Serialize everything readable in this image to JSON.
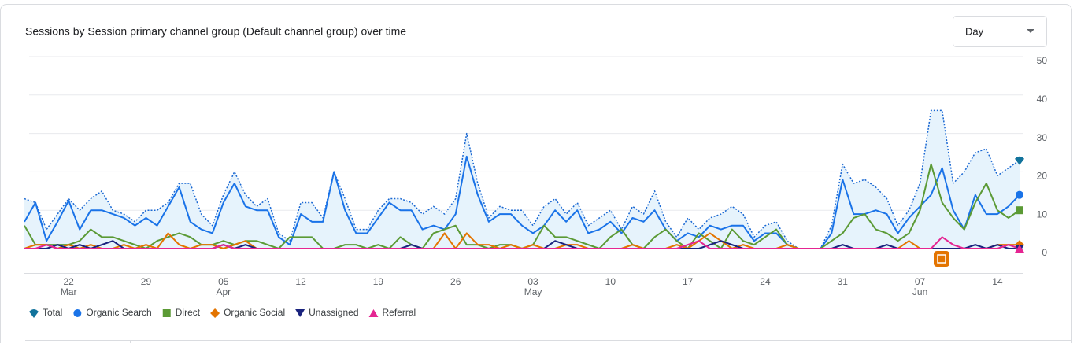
{
  "chart_data": {
    "type": "line",
    "title": "Sessions by Session primary channel group (Default channel group) over time",
    "period": "Day",
    "categories": [
      null,
      null,
      null,
      null,
      "22",
      null,
      null,
      null,
      null,
      null,
      null,
      "29",
      null,
      null,
      null,
      null,
      null,
      null,
      "05",
      null,
      null,
      null,
      null,
      null,
      null,
      "12",
      null,
      null,
      null,
      null,
      null,
      null,
      "19",
      null,
      null,
      null,
      null,
      null,
      null,
      "26",
      null,
      null,
      null,
      null,
      null,
      null,
      "03",
      null,
      null,
      null,
      null,
      null,
      null,
      "10",
      null,
      null,
      null,
      null,
      null,
      null,
      "17",
      null,
      null,
      null,
      null,
      null,
      null,
      "24",
      null,
      null,
      null,
      null,
      null,
      null,
      "31",
      null,
      null,
      null,
      null,
      null,
      null,
      "07",
      null,
      null,
      null,
      null,
      null,
      null,
      "14",
      null,
      null
    ],
    "months": [
      null,
      null,
      null,
      null,
      "Mar",
      null,
      null,
      null,
      null,
      null,
      null,
      null,
      null,
      null,
      null,
      null,
      null,
      null,
      "Apr",
      null,
      null,
      null,
      null,
      null,
      null,
      null,
      null,
      null,
      null,
      null,
      null,
      null,
      null,
      null,
      null,
      null,
      null,
      null,
      null,
      null,
      null,
      null,
      null,
      null,
      null,
      null,
      "May",
      null,
      null,
      null,
      null,
      null,
      null,
      null,
      null,
      null,
      null,
      null,
      null,
      null,
      null,
      null,
      null,
      null,
      null,
      null,
      null,
      null,
      null,
      null,
      null,
      null,
      null,
      null,
      null,
      null,
      null,
      null,
      null,
      null,
      null,
      "Jun",
      null,
      null,
      null,
      null,
      null,
      null,
      null,
      null,
      null
    ],
    "ylim": [
      0,
      50
    ],
    "yticks": [
      0,
      10,
      20,
      30,
      40,
      50
    ],
    "grid": true,
    "legend": "bottom",
    "series": [
      {
        "name": "Total",
        "color": "#1967d2",
        "marker_color": "#12739c",
        "style": "dotted",
        "area": "#e6f3fc",
        "marker": "teardrop",
        "values": [
          13,
          12,
          5,
          9,
          13,
          10,
          13,
          15,
          10,
          9,
          7,
          10,
          10,
          12,
          17,
          17,
          9,
          6,
          14,
          20,
          14,
          11,
          13,
          4,
          2,
          12,
          12,
          8,
          20,
          13,
          5,
          5,
          10,
          13,
          13,
          12,
          9,
          11,
          9,
          13,
          30,
          17,
          8,
          11,
          10,
          10,
          6,
          11,
          13,
          9,
          12,
          6,
          8,
          10,
          5,
          11,
          9,
          15,
          7,
          3,
          8,
          5,
          8,
          9,
          11,
          9,
          3,
          6,
          7,
          2,
          0,
          0,
          0,
          6,
          22,
          17,
          18,
          16,
          13,
          6,
          10,
          17,
          36,
          36,
          17,
          20,
          25,
          26,
          19,
          21,
          23
        ]
      },
      {
        "name": "Organic Search",
        "color": "#1a73e8",
        "marker": "circle",
        "values": [
          7,
          12,
          2,
          7,
          12.5,
          5,
          10,
          10,
          9,
          8,
          6,
          8,
          6,
          11,
          16,
          7,
          5,
          4,
          12,
          17,
          11,
          10,
          10,
          3,
          1,
          9,
          7,
          7,
          20,
          10,
          4,
          4,
          8,
          12,
          10,
          10,
          5,
          6,
          5,
          9,
          24,
          14,
          7,
          9,
          9,
          6,
          4,
          6,
          10,
          7,
          10,
          4,
          5,
          7,
          4,
          8,
          7,
          10,
          5,
          2,
          4,
          3,
          6,
          5,
          6,
          6,
          2,
          4,
          4,
          1,
          0,
          0,
          0,
          4,
          18,
          9,
          9,
          10,
          9,
          4,
          8,
          11,
          14,
          21,
          10,
          5,
          14,
          9,
          9,
          11,
          14
        ]
      },
      {
        "name": "Direct",
        "color": "#5b9a35",
        "marker": "square",
        "values": [
          6,
          1,
          1,
          1,
          1,
          2,
          5,
          3,
          3,
          2,
          1,
          0,
          2,
          3,
          4,
          3,
          1,
          1,
          2,
          1,
          2,
          2,
          1,
          0,
          3,
          3,
          3,
          0,
          0,
          1,
          1,
          0,
          1,
          0,
          3,
          1,
          0,
          4,
          5,
          6,
          1,
          1,
          0,
          1,
          1,
          0,
          1,
          6,
          3,
          3,
          2,
          1,
          0,
          3,
          5,
          1,
          0,
          3,
          5,
          2,
          0,
          4,
          2,
          0,
          5,
          2,
          1,
          3,
          5,
          1,
          0,
          0,
          0,
          2,
          4,
          8,
          9,
          5,
          4,
          2,
          4,
          10,
          22,
          12,
          8,
          5,
          12,
          17,
          10,
          8,
          10
        ]
      },
      {
        "name": "Organic Social",
        "color": "#e37400",
        "marker": "diamond",
        "values": [
          0,
          1,
          1,
          0,
          1,
          0,
          1,
          0,
          0,
          1,
          0,
          1,
          0,
          4,
          1,
          0,
          1,
          1,
          0,
          1,
          2,
          0,
          0,
          0,
          0,
          0,
          0,
          0,
          0,
          0,
          0,
          0,
          0,
          0,
          0,
          0,
          0,
          0,
          4,
          0,
          4,
          1,
          1,
          0,
          1,
          0,
          1,
          0,
          0,
          1,
          1,
          0,
          0,
          0,
          0,
          1,
          0,
          0,
          0,
          1,
          0,
          2,
          4,
          2,
          0,
          1,
          0,
          0,
          0,
          1,
          0,
          0,
          0,
          0,
          0,
          0,
          0,
          0,
          0,
          0,
          2,
          0,
          0,
          0,
          0,
          0,
          0,
          0,
          1,
          1,
          1
        ]
      },
      {
        "name": "Unassigned",
        "color": "#1a237e",
        "marker": "triangle-down",
        "values": [
          0,
          0,
          0,
          1,
          0,
          1,
          0,
          1,
          2,
          0,
          0,
          0,
          0,
          0,
          0,
          0,
          0,
          0,
          1,
          0,
          1,
          0,
          0,
          0,
          0,
          0,
          0,
          0,
          0,
          0,
          0,
          0,
          0,
          0,
          0,
          1,
          0,
          0,
          0,
          0,
          0,
          0,
          0,
          0,
          0,
          0,
          0,
          0,
          2,
          1,
          0,
          0,
          0,
          0,
          0,
          0,
          0,
          0,
          0,
          0,
          0,
          0,
          1,
          2,
          1,
          0,
          0,
          0,
          0,
          0,
          0,
          0,
          0,
          0,
          1,
          0,
          0,
          0,
          1,
          0,
          0,
          0,
          0,
          0,
          0,
          0,
          1,
          0,
          1,
          0,
          0
        ]
      },
      {
        "name": "Referral",
        "color": "#e52592",
        "marker": "triangle-up",
        "values": [
          0,
          0,
          1,
          0,
          0,
          0,
          0,
          0,
          0,
          0,
          0,
          0,
          0,
          0,
          0,
          0,
          0,
          0,
          1,
          0,
          0,
          0,
          0,
          0,
          0,
          0,
          0,
          0,
          0,
          0,
          0,
          0,
          0,
          0,
          0,
          0,
          0,
          0,
          0,
          0,
          0,
          0,
          0,
          0,
          0,
          0,
          0,
          0,
          0,
          0,
          0,
          0,
          0,
          0,
          0,
          0,
          0,
          0,
          0,
          0,
          1,
          2,
          0,
          0,
          0,
          0,
          0,
          0,
          0,
          0,
          0,
          0,
          0,
          0,
          0,
          0,
          0,
          0,
          0,
          0,
          0,
          0,
          0,
          3,
          1,
          0,
          0,
          0,
          0,
          1,
          0
        ]
      }
    ]
  }
}
